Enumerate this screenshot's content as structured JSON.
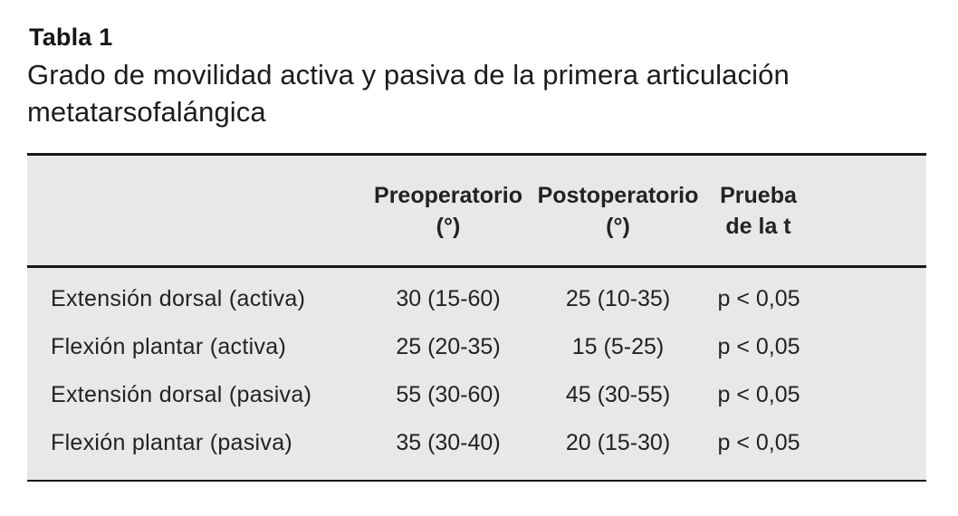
{
  "title": "Tabla 1",
  "caption": {
    "line1": "Grado de movilidad activa y pasiva de la primera articulación",
    "line2": "metatarsofalángica"
  },
  "table": {
    "headers": [
      {
        "line1": "",
        "line2": ""
      },
      {
        "line1": "Preoperatorio",
        "line2": "(°)"
      },
      {
        "line1": "Postoperatorio",
        "line2": "(°)"
      },
      {
        "line1": "Prueba",
        "line2": "de la t"
      }
    ],
    "rows": [
      {
        "label": "Extensión dorsal (activa)",
        "pre": "30 (15-60)",
        "post": "25 (10-35)",
        "test": "p < 0,05"
      },
      {
        "label": "Flexión plantar (activa)",
        "pre": "25 (20-35)",
        "post": "15 (5-25)",
        "test": "p < 0,05"
      },
      {
        "label": "Extensión dorsal (pasiva)",
        "pre": "55 (30-60)",
        "post": "45 (30-55)",
        "test": "p < 0,05"
      },
      {
        "label": "Flexión plantar (pasiva)",
        "pre": "35 (30-40)",
        "post": "20 (15-30)",
        "test": "p < 0,05"
      }
    ]
  },
  "colors": {
    "table_background": "#e8e8e6",
    "rule_color": "#161616",
    "text_color": "#242122"
  }
}
